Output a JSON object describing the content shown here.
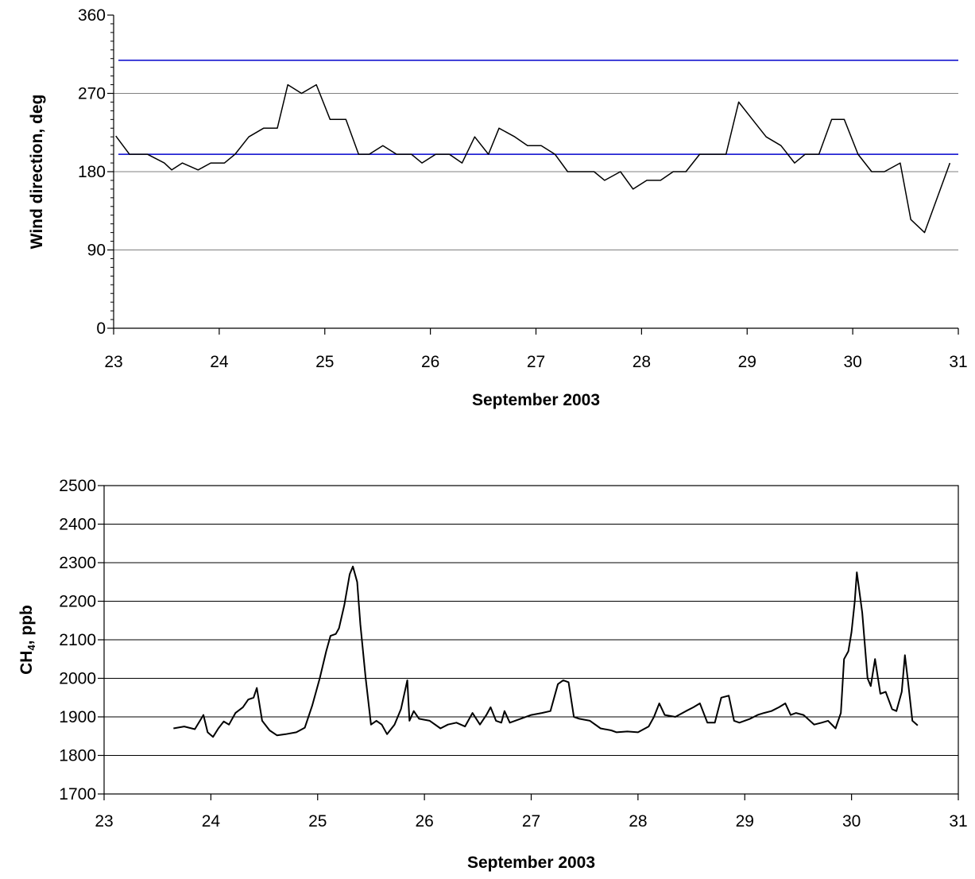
{
  "chart_data": [
    {
      "type": "line",
      "xlabel": "September 2003",
      "ylabel": "Wind direction, deg",
      "xlim": [
        23,
        31
      ],
      "ylim": [
        0,
        360
      ],
      "x_ticks": [
        "23",
        "24",
        "25",
        "26",
        "27",
        "28",
        "29",
        "30",
        "31"
      ],
      "y_ticks": [
        "0",
        "90",
        "180",
        "270",
        "360"
      ],
      "y_gridlines": [
        90,
        180,
        270
      ],
      "grid": "horizontal",
      "colors": {
        "series": "#000000",
        "reference": "#0000cc",
        "grid": "#808080"
      },
      "reference_lines": [
        {
          "y": 200
        },
        {
          "y": 308
        }
      ],
      "series": [
        {
          "x": [
            23.02,
            23.15,
            23.32,
            23.48,
            23.55,
            23.65,
            23.8,
            23.92,
            24.05,
            24.15,
            24.28,
            24.42,
            24.55,
            24.65,
            24.78,
            24.92,
            25.05,
            25.2,
            25.32,
            25.42,
            25.55,
            25.68,
            25.82,
            25.92,
            26.05,
            26.18,
            26.3,
            26.42,
            26.55,
            26.65,
            26.8,
            26.92,
            27.05,
            27.18,
            27.3,
            27.42,
            27.55,
            27.65,
            27.8,
            27.92,
            28.05,
            28.18,
            28.3,
            28.42,
            28.55,
            28.68,
            28.8,
            28.92,
            29.05,
            29.18,
            29.32,
            29.45,
            29.55,
            29.68,
            29.8,
            29.92,
            30.05,
            30.18,
            30.3,
            30.45,
            30.55,
            30.68,
            30.92
          ],
          "values": [
            221,
            200,
            200,
            190,
            182,
            190,
            182,
            190,
            190,
            200,
            220,
            230,
            230,
            280,
            270,
            280,
            240,
            240,
            200,
            200,
            210,
            200,
            200,
            190,
            200,
            200,
            190,
            220,
            200,
            230,
            220,
            210,
            210,
            200,
            180,
            180,
            180,
            170,
            180,
            160,
            170,
            170,
            180,
            180,
            200,
            200,
            200,
            260,
            240,
            220,
            210,
            190,
            200,
            200,
            240,
            240,
            200,
            180,
            180,
            190,
            125,
            110,
            190
          ]
        }
      ]
    },
    {
      "type": "line",
      "xlabel": "September 2003",
      "ylabel": "CH",
      "ylabel_sub": "4",
      "ylabel_rest": ",  ppb",
      "xlim": [
        23,
        31
      ],
      "ylim": [
        1700,
        2500
      ],
      "x_ticks": [
        "23",
        "24",
        "25",
        "26",
        "27",
        "28",
        "29",
        "30",
        "31"
      ],
      "y_ticks": [
        "1700",
        "1800",
        "1900",
        "2000",
        "2100",
        "2200",
        "2300",
        "2400",
        "2500"
      ],
      "y_gridlines": [
        1800,
        1900,
        2000,
        2100,
        2200,
        2300,
        2400,
        2500
      ],
      "grid": "horizontal",
      "colors": {
        "series": "#000000",
        "grid": "#000000"
      },
      "series": [
        {
          "x": [
            23.65,
            23.75,
            23.85,
            23.93,
            23.97,
            24.02,
            24.07,
            24.12,
            24.17,
            24.23,
            24.3,
            24.35,
            24.4,
            24.43,
            24.48,
            24.55,
            24.62,
            24.7,
            24.8,
            24.88,
            24.95,
            25.02,
            25.08,
            25.12,
            25.17,
            25.2,
            25.25,
            25.3,
            25.33,
            25.37,
            25.4,
            25.45,
            25.5,
            25.55,
            25.6,
            25.65,
            25.72,
            25.78,
            25.84,
            25.86,
            25.9,
            25.95,
            26.05,
            26.15,
            26.22,
            26.3,
            26.38,
            26.45,
            26.52,
            26.58,
            26.62,
            26.67,
            26.72,
            26.75,
            26.8,
            26.9,
            27.0,
            27.1,
            27.18,
            27.25,
            27.3,
            27.35,
            27.4,
            27.45,
            27.55,
            27.65,
            27.75,
            27.8,
            27.9,
            28.0,
            28.1,
            28.15,
            28.2,
            28.25,
            28.35,
            28.45,
            28.52,
            28.58,
            28.65,
            28.72,
            28.78,
            28.85,
            28.9,
            28.95,
            29.05,
            29.12,
            29.18,
            29.25,
            29.32,
            29.38,
            29.43,
            29.48,
            29.55,
            29.65,
            29.72,
            29.78,
            29.85,
            29.9,
            29.93,
            29.97,
            30.0,
            30.03,
            30.05,
            30.1,
            30.15,
            30.18,
            30.22,
            30.27,
            30.32,
            30.38,
            30.42,
            30.47,
            30.5,
            30.53,
            30.57,
            30.62
          ],
          "values": [
            1870,
            1875,
            1868,
            1905,
            1860,
            1848,
            1870,
            1888,
            1880,
            1910,
            1925,
            1945,
            1950,
            1975,
            1890,
            1865,
            1852,
            1855,
            1860,
            1872,
            1930,
            2000,
            2070,
            2110,
            2115,
            2130,
            2190,
            2270,
            2290,
            2250,
            2140,
            2000,
            1880,
            1890,
            1880,
            1855,
            1880,
            1920,
            1995,
            1890,
            1915,
            1895,
            1890,
            1870,
            1880,
            1885,
            1875,
            1910,
            1880,
            1905,
            1925,
            1890,
            1885,
            1915,
            1885,
            1895,
            1905,
            1910,
            1915,
            1985,
            1995,
            1990,
            1900,
            1895,
            1890,
            1870,
            1865,
            1860,
            1862,
            1860,
            1875,
            1900,
            1935,
            1905,
            1900,
            1915,
            1925,
            1935,
            1885,
            1885,
            1950,
            1955,
            1890,
            1885,
            1895,
            1905,
            1910,
            1915,
            1925,
            1935,
            1905,
            1910,
            1905,
            1880,
            1885,
            1890,
            1870,
            1910,
            2050,
            2070,
            2120,
            2200,
            2275,
            2170,
            2000,
            1980,
            2050,
            1960,
            1965,
            1920,
            1915,
            1965,
            2060,
            1990,
            1890,
            1878
          ]
        }
      ]
    }
  ]
}
